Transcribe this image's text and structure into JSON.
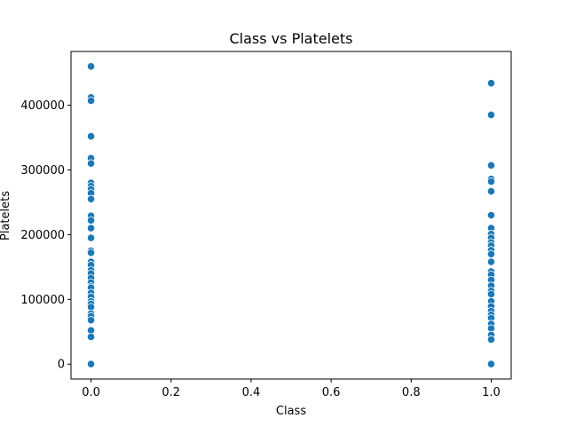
{
  "chart_data": {
    "type": "scatter",
    "title": "Class vs Platelets",
    "xlabel": "Class",
    "ylabel": "Platelets",
    "xlim": [
      -0.05,
      1.05
    ],
    "ylim": [
      -23000,
      483000
    ],
    "xticks": [
      0.0,
      0.2,
      0.4,
      0.6,
      0.8,
      1.0
    ],
    "xtick_labels": [
      "0.0",
      "0.2",
      "0.4",
      "0.6",
      "0.8",
      "1.0"
    ],
    "yticks": [
      0,
      100000,
      200000,
      300000,
      400000
    ],
    "ytick_labels": [
      "0",
      "100000",
      "200000",
      "300000",
      "400000"
    ],
    "grid": false,
    "point_color": "#1f77b4",
    "series": [
      {
        "x": 0,
        "values": [
          460000,
          412000,
          407000,
          352000,
          318000,
          310000,
          280000,
          275000,
          270000,
          264000,
          255000,
          229000,
          222000,
          210000,
          195000,
          175000,
          172000,
          158000,
          153000,
          145000,
          140000,
          133000,
          126000,
          120000,
          118000,
          110000,
          104000,
          97000,
          93000,
          88000,
          78000,
          74000,
          68000,
          52000,
          42000,
          0
        ]
      },
      {
        "x": 1,
        "values": [
          434000,
          385000,
          307000,
          286000,
          282000,
          267000,
          230000,
          210000,
          201000,
          195000,
          188000,
          183000,
          176000,
          170000,
          158000,
          143000,
          138000,
          130000,
          121000,
          113000,
          108000,
          97000,
          89000,
          82000,
          76000,
          71000,
          62000,
          55000,
          45000,
          38000,
          0
        ]
      }
    ]
  }
}
